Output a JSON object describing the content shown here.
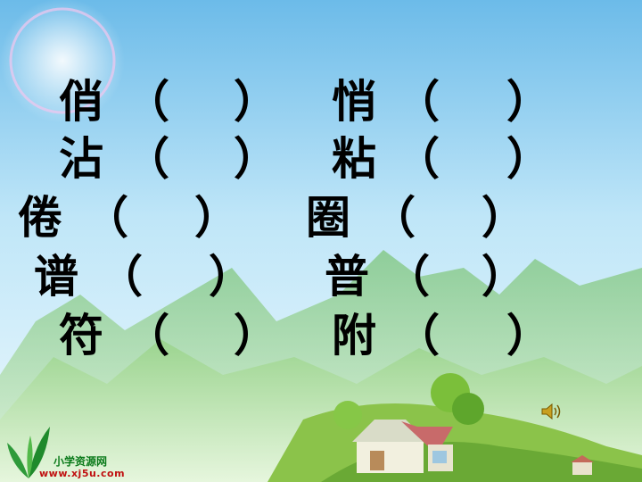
{
  "rows": [
    {
      "left_char": "俏",
      "left_open": "（",
      "left_close": "）",
      "right_char": "悄",
      "right_open": "（",
      "right_close": "）"
    },
    {
      "left_char": "沾",
      "left_open": "（",
      "left_close": "）",
      "right_char": "粘",
      "right_open": "（",
      "right_close": "）"
    },
    {
      "left_char": "倦",
      "left_open": "（",
      "left_close": "）",
      "right_char": "圈",
      "right_open": "（",
      "right_close": "）"
    },
    {
      "left_char": "谱",
      "left_open": "（",
      "left_close": "）",
      "right_char": "普",
      "right_open": "（",
      "right_close": "）"
    },
    {
      "left_char": "符",
      "left_open": "（",
      "left_close": "）",
      "right_char": "附",
      "right_open": "（",
      "right_close": "）"
    }
  ],
  "logo": {
    "name": "小学资源网",
    "url": "www.xj5u.com"
  },
  "icons": {
    "speaker": "speaker-icon",
    "logo": "leaf-logo-icon"
  },
  "colors": {
    "sky_top": "#7fc6ef",
    "sky_bottom": "#e8f7fd",
    "hills": "#a9d79a",
    "hills_dark": "#6fb56a"
  }
}
